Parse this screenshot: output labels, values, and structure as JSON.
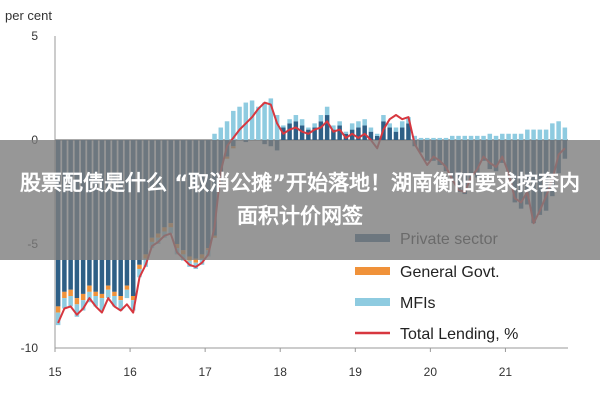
{
  "chart_data": {
    "type": "bar",
    "stacked": true,
    "title": "",
    "ylabel": "per cent",
    "xlabel": "",
    "ylim": [
      -10,
      5
    ],
    "yticks": [
      5,
      0,
      -5,
      -10
    ],
    "xticks": [
      "15",
      "16",
      "17",
      "18",
      "19",
      "20",
      "21"
    ],
    "grid": false,
    "legend_position": "bottom-right",
    "x": [
      "2015-01",
      "2015-02",
      "2015-03",
      "2015-04",
      "2015-05",
      "2015-06",
      "2015-07",
      "2015-08",
      "2015-09",
      "2015-10",
      "2015-11",
      "2015-12",
      "2016-01",
      "2016-02",
      "2016-03",
      "2016-04",
      "2016-05",
      "2016-06",
      "2016-07",
      "2016-08",
      "2016-09",
      "2016-10",
      "2016-11",
      "2016-12",
      "2017-01",
      "2017-02",
      "2017-03",
      "2017-04",
      "2017-05",
      "2017-06",
      "2017-07",
      "2017-08",
      "2017-09",
      "2017-10",
      "2017-11",
      "2017-12",
      "2018-01",
      "2018-02",
      "2018-03",
      "2018-04",
      "2018-05",
      "2018-06",
      "2018-07",
      "2018-08",
      "2018-09",
      "2018-10",
      "2018-11",
      "2018-12",
      "2019-01",
      "2019-02",
      "2019-03",
      "2019-04",
      "2019-05",
      "2019-06",
      "2019-07",
      "2019-08",
      "2019-09",
      "2019-10",
      "2019-11",
      "2019-12",
      "2020-01",
      "2020-02",
      "2020-03",
      "2020-04",
      "2020-05",
      "2020-06",
      "2020-07",
      "2020-08",
      "2020-09",
      "2020-10",
      "2020-11",
      "2020-12",
      "2021-01",
      "2021-02",
      "2021-03",
      "2021-04",
      "2021-05",
      "2021-06",
      "2021-07",
      "2021-08",
      "2021-09",
      "2021-10"
    ],
    "series": [
      {
        "name": "Private sector",
        "type": "bar",
        "color": "#2e5f86",
        "values": [
          -8.0,
          -7.3,
          -7.2,
          -7.6,
          -7.4,
          -7.0,
          -7.3,
          -7.4,
          -7.0,
          -7.3,
          -7.5,
          -7.0,
          -7.5,
          -6.0,
          -5.5,
          -4.7,
          -4.5,
          -4.2,
          -4.0,
          -5.0,
          -5.3,
          -5.6,
          -5.7,
          -5.5,
          -5.2,
          -4.6,
          -2.0,
          -0.8,
          -0.3,
          0.0,
          -0.1,
          0.0,
          0.0,
          -0.2,
          -0.3,
          -0.5,
          0.6,
          0.8,
          0.9,
          0.7,
          0.5,
          0.6,
          0.9,
          1.2,
          0.5,
          0.7,
          0.3,
          0.5,
          0.6,
          0.7,
          0.4,
          0.2,
          0.9,
          0.6,
          0.4,
          0.6,
          0.8,
          -0.3,
          -0.6,
          -1.0,
          -1.0,
          -1.2,
          -1.5,
          -2.0,
          -2.5,
          -2.6,
          -2.0,
          -1.8,
          -1.0,
          -1.4,
          -1.5,
          -1.1,
          -1.9,
          -3.0,
          -3.3,
          -3.1,
          -4.0,
          -3.6,
          -3.4,
          -2.7,
          -1.6,
          -0.9
        ]
      },
      {
        "name": "General Govt.",
        "type": "bar",
        "color": "#f0923a",
        "values": [
          -0.3,
          -0.3,
          -0.3,
          -0.3,
          -0.3,
          -0.3,
          -0.2,
          -0.2,
          -0.2,
          -0.2,
          -0.2,
          -0.2,
          -0.2,
          -0.2,
          -0.2,
          -0.2,
          -0.2,
          -0.2,
          -0.2,
          -0.2,
          -0.2,
          -0.2,
          -0.2,
          -0.2,
          -0.1,
          -0.1,
          -0.1,
          -0.1,
          -0.1,
          0.0,
          0.0,
          0.0,
          0.0,
          0.0,
          0.0,
          0.0,
          0.0,
          0.0,
          0.0,
          0.0,
          0.0,
          0.0,
          0.0,
          0.0,
          0.0,
          0.0,
          0.0,
          0.0,
          0.0,
          0.0,
          0.0,
          0.0,
          0.0,
          0.0,
          0.0,
          0.0,
          0.0,
          0.0,
          0.0,
          0.0,
          0.0,
          0.0,
          0.0,
          0.0,
          0.0,
          0.0,
          0.0,
          0.0,
          0.0,
          0.0,
          0.0,
          0.0,
          0.0,
          0.0,
          0.0,
          0.0,
          0.0,
          0.0,
          0.0,
          0.0,
          0.0,
          0.0
        ]
      },
      {
        "name": "MFIs",
        "type": "bar",
        "color": "#8ecbe0",
        "values": [
          -0.6,
          -0.5,
          -0.5,
          -0.6,
          -0.5,
          -0.5,
          -0.5,
          -0.6,
          -0.4,
          -0.5,
          -0.5,
          -0.4,
          -0.5,
          -0.4,
          -0.4,
          -0.3,
          -0.3,
          -0.3,
          -0.3,
          -0.3,
          -0.3,
          -0.3,
          -0.3,
          -0.3,
          -0.3,
          0.3,
          0.6,
          0.9,
          1.4,
          1.6,
          1.8,
          1.9,
          1.6,
          1.8,
          2.0,
          1.2,
          0.1,
          0.2,
          0.3,
          0.3,
          0.1,
          0.2,
          0.3,
          0.4,
          0.2,
          0.2,
          0.1,
          0.3,
          0.3,
          0.3,
          0.2,
          0.1,
          0.3,
          0.2,
          0.2,
          0.3,
          0.3,
          0.2,
          0.1,
          0.1,
          0.1,
          0.1,
          0.1,
          0.2,
          0.2,
          0.2,
          0.2,
          0.2,
          0.2,
          0.3,
          0.2,
          0.3,
          0.3,
          0.3,
          0.3,
          0.5,
          0.5,
          0.5,
          0.5,
          0.8,
          0.9,
          0.6
        ]
      },
      {
        "name": "Total Lending, %",
        "type": "line",
        "color": "#d7373f",
        "values": [
          -8.8,
          -8.1,
          -8.0,
          -8.4,
          -8.1,
          -7.6,
          -8.0,
          -8.3,
          -7.6,
          -8.0,
          -8.2,
          -7.9,
          -8.3,
          -6.6,
          -6.0,
          -5.1,
          -4.9,
          -4.6,
          -4.5,
          -5.4,
          -5.7,
          -6.0,
          -6.1,
          -5.9,
          -5.5,
          -4.2,
          -1.5,
          -0.3,
          0.1,
          0.5,
          0.8,
          1.1,
          1.5,
          1.8,
          1.7,
          0.8,
          0.3,
          0.5,
          0.6,
          0.4,
          0.3,
          0.5,
          0.6,
          0.9,
          0.4,
          0.5,
          0.1,
          0.3,
          0.1,
          0.3,
          0.0,
          -0.4,
          0.5,
          1.0,
          1.2,
          1.0,
          1.1,
          -0.2,
          -0.7,
          -1.2,
          -0.8,
          -1.0,
          -1.3,
          -1.9,
          -2.4,
          -2.5,
          -1.8,
          -1.4,
          -0.8,
          -1.1,
          -1.3,
          -0.8,
          -1.6,
          -2.8,
          -3.0,
          -2.5,
          -4.0,
          -3.4,
          -2.7,
          -1.9,
          -0.7,
          -0.4
        ]
      }
    ]
  },
  "banner": {
    "text": "股票配债是什么 “取消公摊”开始落地！湖南衡阳要求按套内面积计价网签"
  }
}
